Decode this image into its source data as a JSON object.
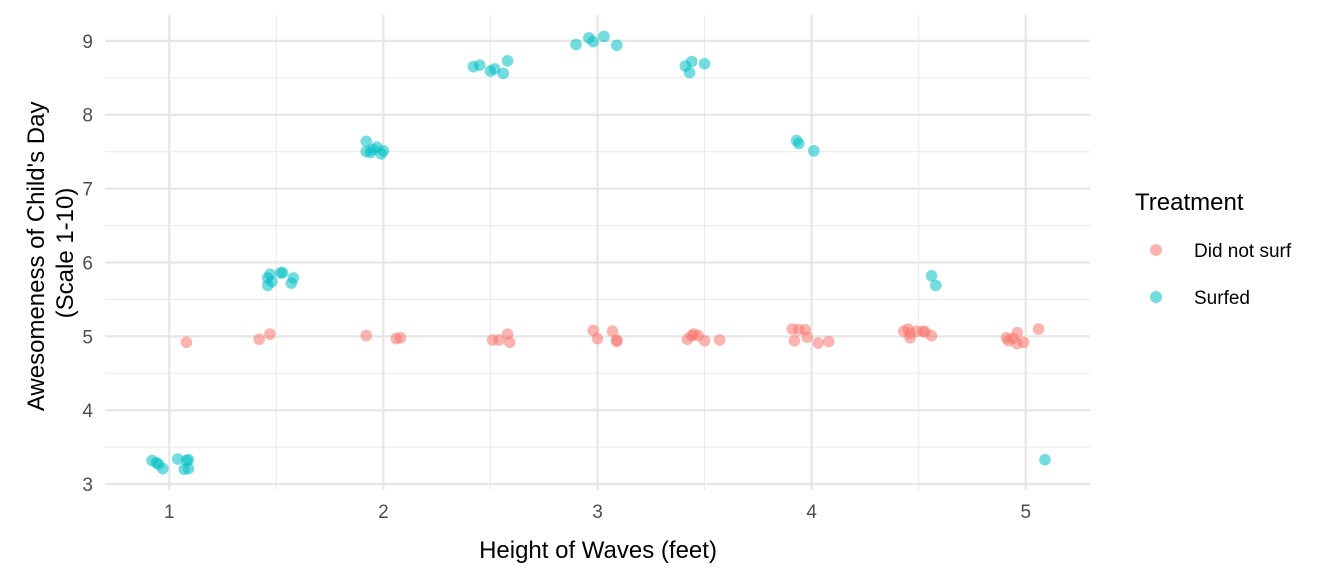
{
  "chart_data": {
    "type": "scatter",
    "title": "",
    "xlabel": "Height of Waves (feet)",
    "ylabel_lines": [
      "Awesomeness of Child's Day",
      "(Scale 1-10)"
    ],
    "xlim": [
      0.7,
      5.3
    ],
    "ylim": [
      2.92,
      9.35
    ],
    "x_ticks": [
      1,
      2,
      3,
      4,
      5
    ],
    "y_ticks": [
      3,
      4,
      5,
      6,
      7,
      8,
      9
    ],
    "grid": true,
    "legend": {
      "title": "Treatment",
      "position": "right"
    },
    "series": [
      {
        "name": "Did not surf",
        "color": "#F8766D",
        "points": [
          [
            1.08,
            4.92
          ],
          [
            1.42,
            4.96
          ],
          [
            1.47,
            5.03
          ],
          [
            1.92,
            5.01
          ],
          [
            2.06,
            4.97
          ],
          [
            2.08,
            4.98
          ],
          [
            2.51,
            4.95
          ],
          [
            2.54,
            4.95
          ],
          [
            2.58,
            5.03
          ],
          [
            2.59,
            4.92
          ],
          [
            2.98,
            5.08
          ],
          [
            3.0,
            4.97
          ],
          [
            3.07,
            5.07
          ],
          [
            3.09,
            4.93
          ],
          [
            3.09,
            4.95
          ],
          [
            3.42,
            4.96
          ],
          [
            3.44,
            5.01
          ],
          [
            3.45,
            5.03
          ],
          [
            3.47,
            5.01
          ],
          [
            3.5,
            4.94
          ],
          [
            3.57,
            4.95
          ],
          [
            3.91,
            5.1
          ],
          [
            3.92,
            4.94
          ],
          [
            3.94,
            5.09
          ],
          [
            3.97,
            5.09
          ],
          [
            3.98,
            4.99
          ],
          [
            4.03,
            4.91
          ],
          [
            4.08,
            4.93
          ],
          [
            4.43,
            5.07
          ],
          [
            4.45,
            5.1
          ],
          [
            4.46,
            5.04
          ],
          [
            4.46,
            4.98
          ],
          [
            4.49,
            5.07
          ],
          [
            4.52,
            5.07
          ],
          [
            4.53,
            5.06
          ],
          [
            4.56,
            5.01
          ],
          [
            4.91,
            4.98
          ],
          [
            4.92,
            4.94
          ],
          [
            4.94,
            4.97
          ],
          [
            4.96,
            4.9
          ],
          [
            4.96,
            5.05
          ],
          [
            4.99,
            4.92
          ],
          [
            5.06,
            5.1
          ]
        ]
      },
      {
        "name": "Surfed",
        "color": "#00BFC4",
        "points": [
          [
            0.92,
            3.32
          ],
          [
            0.94,
            3.29
          ],
          [
            0.95,
            3.27
          ],
          [
            0.97,
            3.21
          ],
          [
            1.04,
            3.34
          ],
          [
            1.07,
            3.2
          ],
          [
            1.08,
            3.32
          ],
          [
            1.09,
            3.33
          ],
          [
            1.09,
            3.21
          ],
          [
            1.46,
            5.79
          ],
          [
            1.46,
            5.69
          ],
          [
            1.47,
            5.84
          ],
          [
            1.48,
            5.74
          ],
          [
            1.52,
            5.86
          ],
          [
            1.53,
            5.86
          ],
          [
            1.57,
            5.72
          ],
          [
            1.58,
            5.79
          ],
          [
            1.92,
            7.64
          ],
          [
            1.92,
            7.5
          ],
          [
            1.94,
            7.49
          ],
          [
            1.95,
            7.53
          ],
          [
            1.97,
            7.56
          ],
          [
            1.99,
            7.47
          ],
          [
            2.0,
            7.51
          ],
          [
            2.42,
            8.65
          ],
          [
            2.45,
            8.67
          ],
          [
            2.5,
            8.59
          ],
          [
            2.52,
            8.62
          ],
          [
            2.56,
            8.56
          ],
          [
            2.58,
            8.73
          ],
          [
            2.9,
            8.95
          ],
          [
            2.96,
            9.04
          ],
          [
            2.98,
            8.99
          ],
          [
            3.03,
            9.06
          ],
          [
            3.09,
            8.94
          ],
          [
            3.41,
            8.66
          ],
          [
            3.43,
            8.57
          ],
          [
            3.44,
            8.72
          ],
          [
            3.5,
            8.69
          ],
          [
            3.93,
            7.65
          ],
          [
            3.94,
            7.61
          ],
          [
            4.01,
            7.51
          ],
          [
            4.56,
            5.82
          ],
          [
            4.58,
            5.69
          ],
          [
            5.09,
            3.33
          ]
        ]
      }
    ]
  }
}
